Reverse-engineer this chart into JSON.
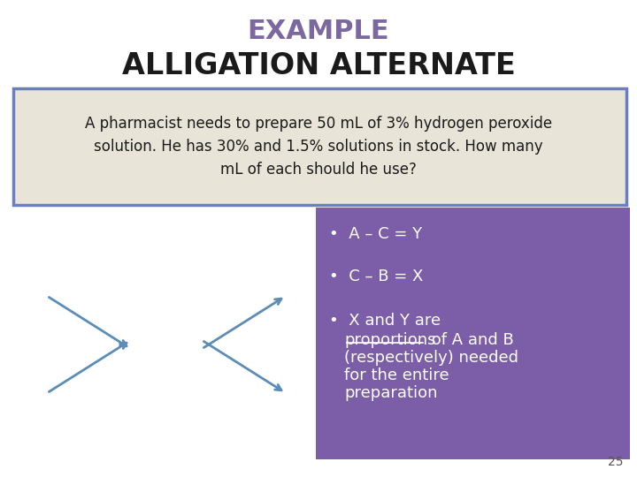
{
  "title_line1": "EXAMPLE",
  "title_line2": "ALLIGATION ALTERNATE",
  "title_line1_color": "#7B68A0",
  "title_line2_color": "#1a1a1a",
  "box1_text": "A pharmacist needs to prepare 50 mL of 3% hydrogen peroxide\nsolution. He has 30% and 1.5% solutions in stock. How many\nmL of each should he use?",
  "box1_bg": "#e8e4d8",
  "box1_border": "#6B7EC5",
  "box2_bg": "#7B5EA7",
  "bullet1": "A – C = Y",
  "bullet2": "C – B = X",
  "bullet3_underline": "proportions",
  "bullet_color": "#ffffff",
  "arrow_color": "#5B8DB8",
  "page_number": "25",
  "background_color": "#ffffff"
}
